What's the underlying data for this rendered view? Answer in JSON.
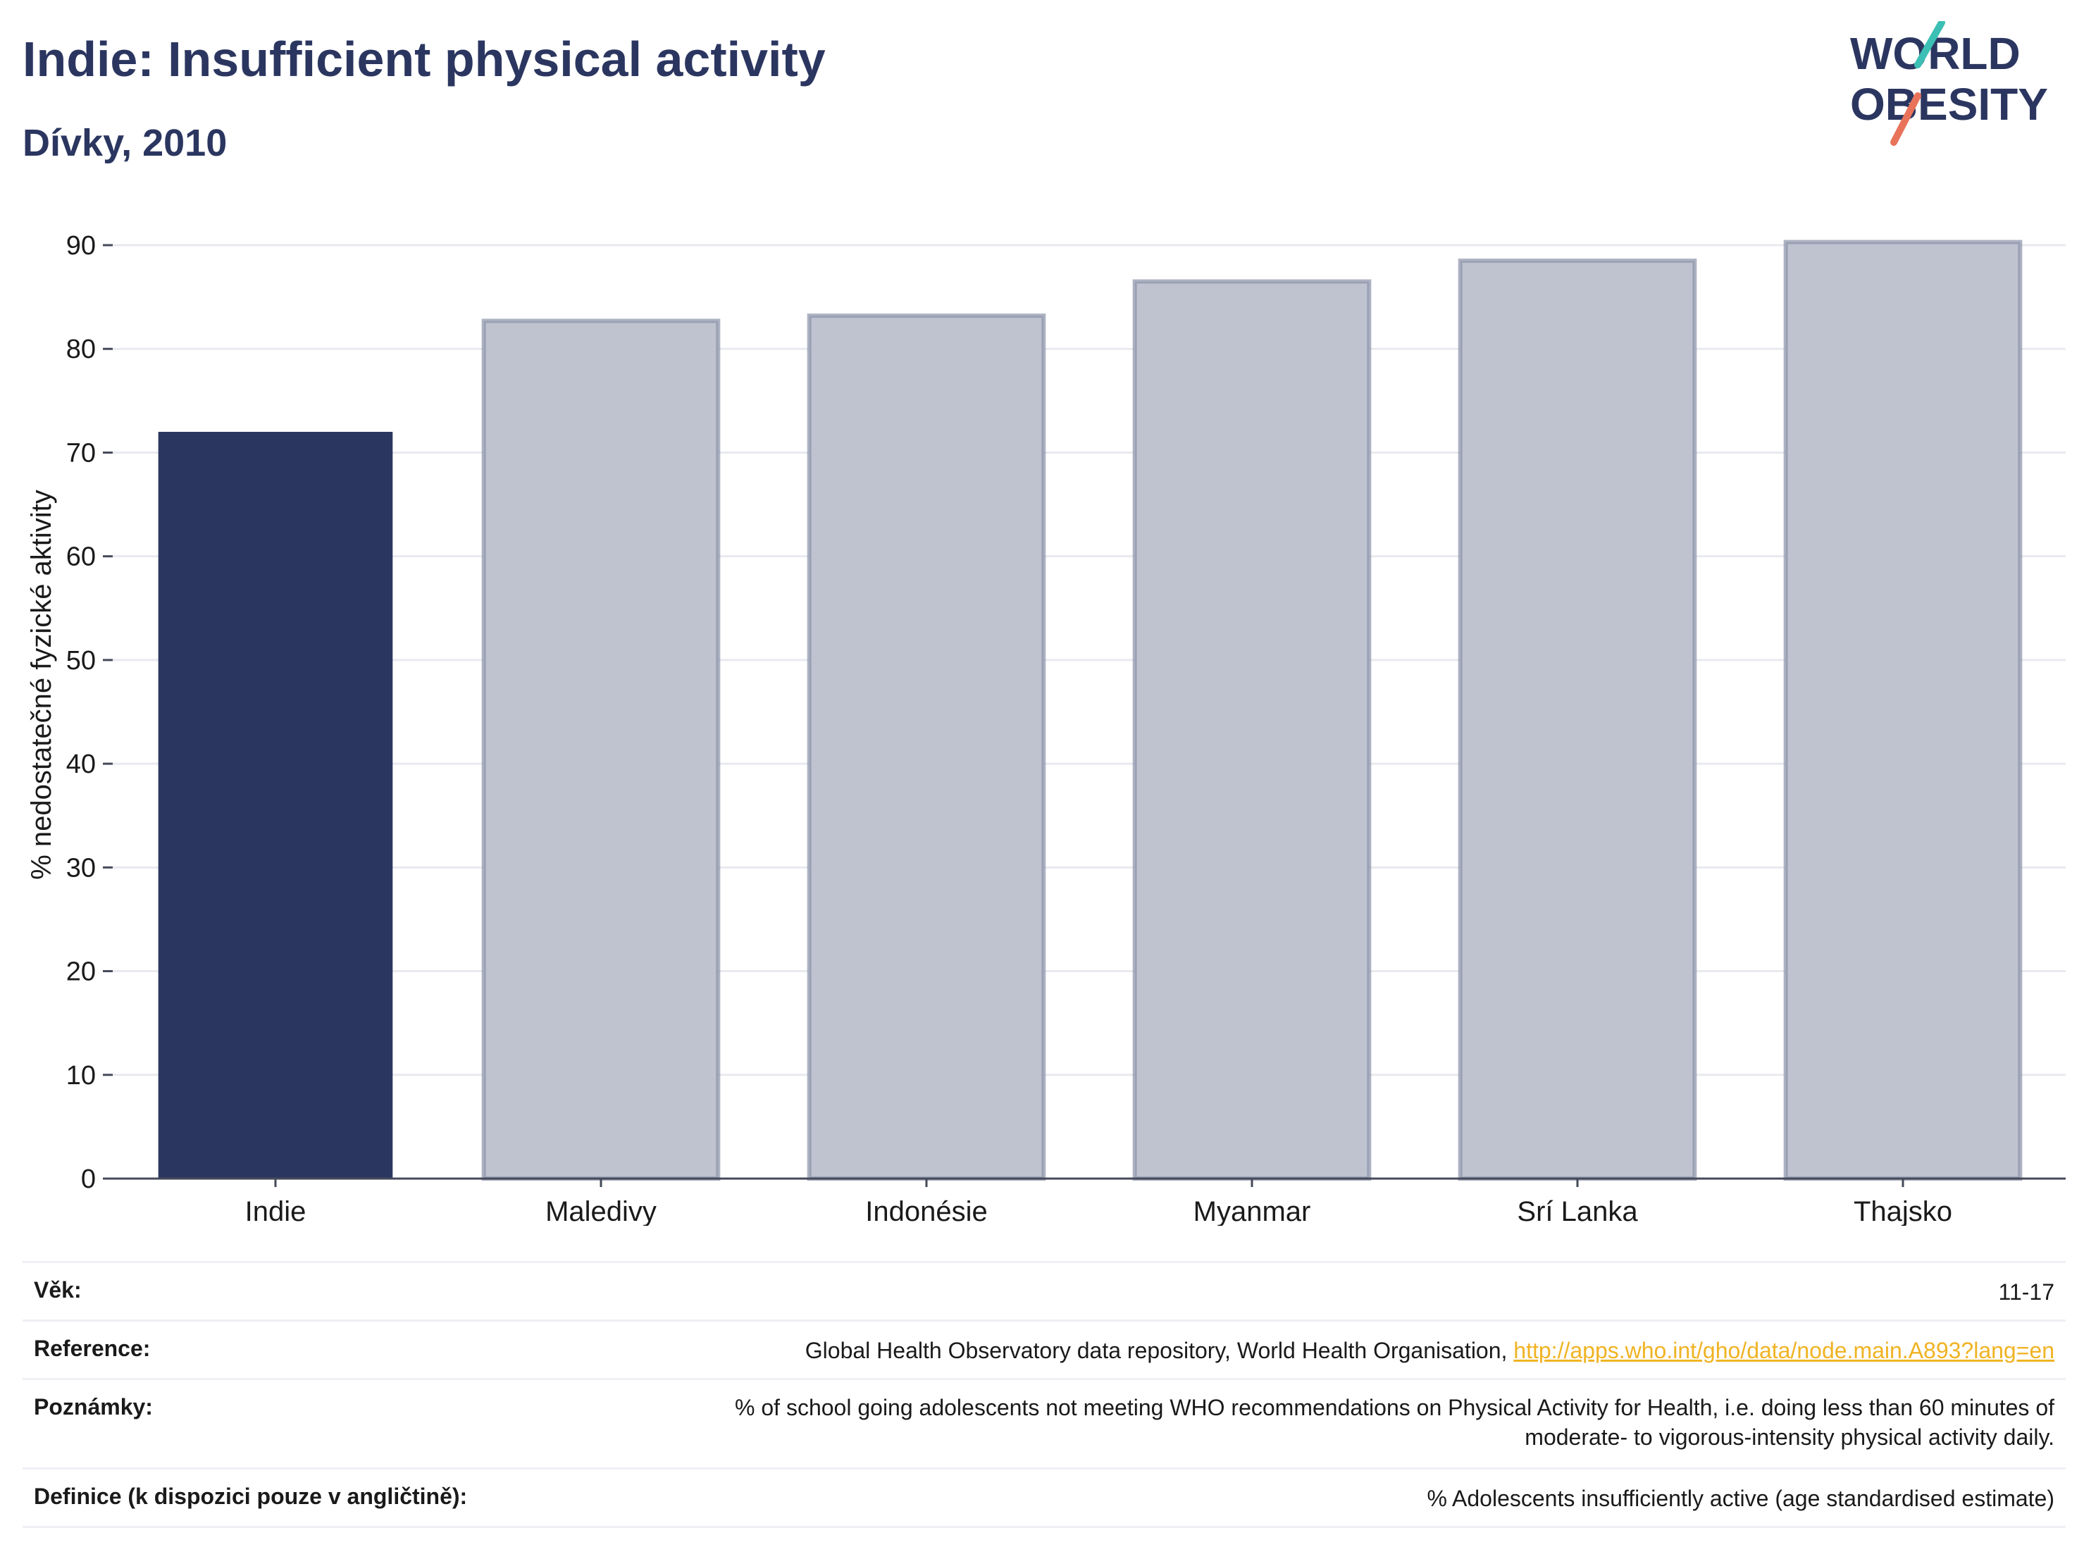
{
  "header": {
    "title": "Indie: Insufficient physical activity",
    "subtitle": "Dívky, 2010"
  },
  "logo": {
    "line1": "WORLD",
    "line2": "OBESITY",
    "icon": "world-obesity-logo",
    "colors": {
      "text": "#2b3660",
      "slash_top": "#3cbfb4",
      "slash_bottom": "#e8735a"
    }
  },
  "chart_data": {
    "type": "bar",
    "categories": [
      "Indie",
      "Maledivy",
      "Indonésie",
      "Myanmar",
      "Srí Lanka",
      "Thajsko"
    ],
    "values": [
      72.0,
      82.7,
      83.2,
      86.5,
      88.5,
      90.3
    ],
    "highlight": "Indie",
    "ylabel": "% nedostatečné fyzické aktivity",
    "ylim": [
      0,
      90
    ],
    "yticks": [
      0,
      10,
      20,
      30,
      40,
      50,
      60,
      70,
      80,
      90
    ],
    "grid": true,
    "colors": {
      "highlight": "#2b3660",
      "other_fill": "#bfc3cf",
      "other_stroke": "#8c93aa"
    }
  },
  "info": {
    "age_label": "Věk:",
    "age_value": "11-17",
    "reference_label": "Reference:",
    "reference_text": "Global Health Observatory data repository, World Health Organisation, ",
    "reference_link": "http://apps.who.int/gho/data/node.main.A893?lang=en",
    "notes_label": "Poznámky:",
    "notes_line1": "% of school going adolescents not meeting WHO recommendations on Physical Activity for Health, i.e. doing less than 60 minutes of",
    "notes_line2": "moderate- to vigorous-intensity physical activity daily.",
    "definition_label": "Definice (k dispozici pouze v angličtině):",
    "definition_value": "% Adolescents insufficiently active (age standardised estimate)"
  }
}
